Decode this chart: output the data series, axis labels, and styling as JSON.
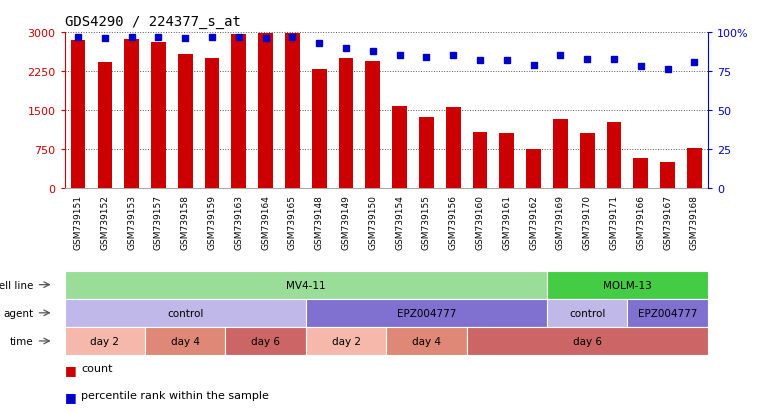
{
  "title": "GDS4290 / 224377_s_at",
  "samples": [
    "GSM739151",
    "GSM739152",
    "GSM739153",
    "GSM739157",
    "GSM739158",
    "GSM739159",
    "GSM739163",
    "GSM739164",
    "GSM739165",
    "GSM739148",
    "GSM739149",
    "GSM739150",
    "GSM739154",
    "GSM739155",
    "GSM739156",
    "GSM739160",
    "GSM739161",
    "GSM739162",
    "GSM739169",
    "GSM739170",
    "GSM739171",
    "GSM739166",
    "GSM739167",
    "GSM739168"
  ],
  "counts": [
    2850,
    2430,
    2870,
    2810,
    2570,
    2510,
    2960,
    2980,
    2990,
    2280,
    2510,
    2440,
    1570,
    1370,
    1560,
    1080,
    1060,
    750,
    1320,
    1060,
    1260,
    580,
    490,
    760
  ],
  "percentile_ranks": [
    97,
    96,
    97,
    97,
    96,
    97,
    97,
    96,
    97,
    93,
    90,
    88,
    85,
    84,
    85,
    82,
    82,
    79,
    85,
    83,
    83,
    78,
    76,
    81
  ],
  "bar_color": "#cc0000",
  "dot_color": "#0000cc",
  "left_axis_color": "#cc0000",
  "right_axis_color": "#0000cc",
  "yticks_left": [
    0,
    750,
    1500,
    2250,
    3000
  ],
  "yticks_right": [
    0,
    25,
    50,
    75,
    100
  ],
  "ylim_left": [
    0,
    3000
  ],
  "ylim_right": [
    0,
    100
  ],
  "cell_line_row": {
    "label": "cell line",
    "segments": [
      {
        "text": "MV4-11",
        "start": 0,
        "end": 18,
        "color": "#99dd99"
      },
      {
        "text": "MOLM-13",
        "start": 18,
        "end": 24,
        "color": "#44cc44"
      }
    ]
  },
  "agent_row": {
    "label": "agent",
    "segments": [
      {
        "text": "control",
        "start": 0,
        "end": 9,
        "color": "#c0b8e8"
      },
      {
        "text": "EPZ004777",
        "start": 9,
        "end": 18,
        "color": "#8070d0"
      },
      {
        "text": "control",
        "start": 18,
        "end": 21,
        "color": "#c0b8e8"
      },
      {
        "text": "EPZ004777",
        "start": 21,
        "end": 24,
        "color": "#8070d0"
      }
    ]
  },
  "time_row": {
    "label": "time",
    "segments": [
      {
        "text": "day 2",
        "start": 0,
        "end": 3,
        "color": "#f5b8aa"
      },
      {
        "text": "day 4",
        "start": 3,
        "end": 6,
        "color": "#e08878"
      },
      {
        "text": "day 6",
        "start": 6,
        "end": 9,
        "color": "#cc6666"
      },
      {
        "text": "day 2",
        "start": 9,
        "end": 12,
        "color": "#f5b8aa"
      },
      {
        "text": "day 4",
        "start": 12,
        "end": 15,
        "color": "#e08878"
      },
      {
        "text": "day 6",
        "start": 15,
        "end": 24,
        "color": "#cc6666"
      }
    ]
  },
  "legend_count_color": "#cc0000",
  "legend_dot_color": "#0000cc",
  "background_color": "#ffffff",
  "grid_color": "#888888",
  "xticklabel_bg": "#dddddd"
}
